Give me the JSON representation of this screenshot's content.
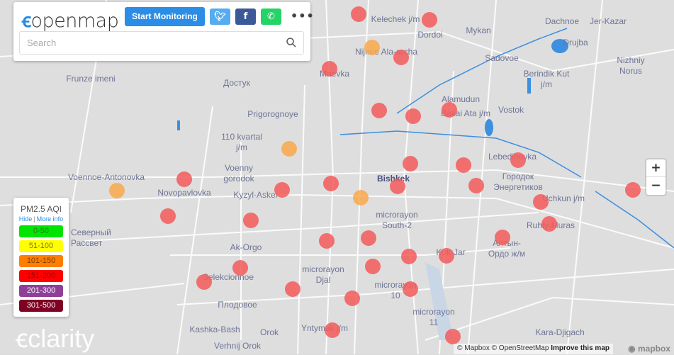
{
  "header": {
    "logo": "openmap",
    "start_button": "Start Monitoring",
    "twitter": "twitter-icon",
    "facebook": "facebook-icon",
    "whatsapp": "whatsapp-icon",
    "more": "•••",
    "search_placeholder": "Search",
    "search_value": ""
  },
  "legend": {
    "title": "PM2.5 AQI",
    "hide": "Hide",
    "more_info": "More info",
    "bands": [
      {
        "label": "0-50",
        "color": "#00e400",
        "text": "#2a7a2a"
      },
      {
        "label": "51-100",
        "color": "#ffff00",
        "text": "#7a7a20"
      },
      {
        "label": "101-150",
        "color": "#ff7e00",
        "text": "#7a3d00"
      },
      {
        "label": "151-200",
        "color": "#ff0000",
        "text": "#9a0000"
      },
      {
        "label": "201-300",
        "color": "#8f3f97",
        "text": "#ffffff"
      },
      {
        "label": "301-500",
        "color": "#7e0023",
        "text": "#ffffff"
      }
    ]
  },
  "zoom": {
    "in": "+",
    "out": "−"
  },
  "branding": {
    "clarity": "clarity"
  },
  "attribution": {
    "mapbox": "© Mapbox",
    "osm": "© OpenStreetMap",
    "improve": "Improve this map",
    "logo": "mapbox"
  },
  "marker_colors": {
    "unhealthy": "#f45b5b",
    "sensitive": "#f9a94b"
  },
  "places": [
    "Kelechek j/m",
    "Mykan",
    "Dachnoe",
    "Jer-Kazar",
    "Dordoi",
    "Drujba",
    "Nijnee Ala-archa",
    "Maevka",
    "Sadovoe",
    "Nizhniy Norus",
    "Frunze imeni",
    "Достук",
    "Berindik Kut j/m",
    "Alamudun",
    "Bakai Ata j/m",
    "Vostok",
    "Prigorognoye",
    "110 kvartal j/m",
    "Lebedinovka",
    "Voennoe-Antonovka",
    "Voenny gorodok",
    "Городок Энергетиков",
    "Bishkek",
    "Novopavlovka",
    "Kyzyl-Asker",
    "Uchkun j/m",
    "Ruhiy-Muras",
    "microrayon South-2",
    "Алтын-Ордо ж/м",
    "Kok-Jar",
    "Ak-Orgo",
    "Selekcionnoe",
    "microrayon Djal",
    "microrayon 10",
    "Плодовое",
    "microrayon 11",
    "Kashka-Bash",
    "Orok",
    "Yntymak j/m",
    "Verhnij Orok",
    "Kara-Djigach",
    "Северный Рассвет"
  ]
}
